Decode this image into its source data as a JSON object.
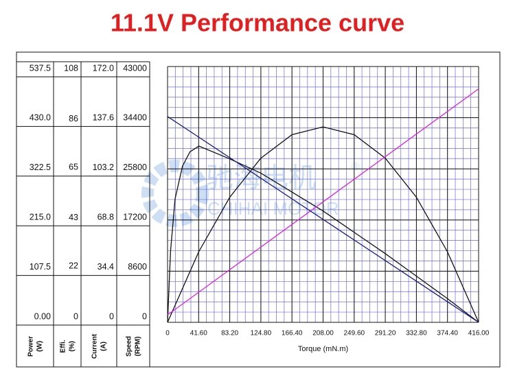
{
  "chart_data": {
    "type": "line",
    "title": "11.1V  Performance curve",
    "xlabel": "Torque (mN.m)",
    "watermark": "驰海电机",
    "watermark_sub": "CHIHAI MOTOR",
    "watermark_mark": "®",
    "xlim": [
      0,
      416
    ],
    "xticks": [
      0,
      {
        "value": 41.6,
        "label": "41.60"
      },
      {
        "value": 83.2,
        "label": "83.20"
      },
      {
        "value": 124.8,
        "label": "124.80"
      },
      {
        "value": 166.4,
        "label": "166.40"
      },
      {
        "value": 208,
        "label": "208.00"
      },
      {
        "value": 249.6,
        "label": "249.60"
      },
      {
        "value": 291.2,
        "label": "291.20"
      },
      {
        "value": 332.8,
        "label": "332.80"
      },
      {
        "value": 374.4,
        "label": "374.40"
      },
      {
        "value": 416,
        "label": "416.00"
      }
    ],
    "grid": true,
    "series": [
      {
        "name": "Power",
        "unit": "(W)",
        "color": "#111111",
        "ylim": [
          0,
          537.5
        ],
        "yticks": [
          {
            "value": 0,
            "label": "0.00"
          },
          107.5,
          {
            "value": 215,
            "label": "215.0"
          },
          322.5,
          {
            "value": 430,
            "label": "430.0"
          },
          537.5
        ],
        "x": [
          0,
          41.6,
          83.2,
          124.8,
          166.4,
          208,
          249.6,
          291.2,
          332.8,
          374.4,
          416
        ],
        "values": [
          0,
          147.9,
          262.8,
          345,
          394.3,
          410.7,
          394.3,
          345,
          262.8,
          147.9,
          0
        ]
      },
      {
        "name": "Effi.",
        "unit": "(%)",
        "color": "#111111",
        "ylim": [
          0,
          108
        ],
        "yticks": [
          0,
          22,
          43,
          65,
          86,
          108
        ],
        "x": [
          0,
          4,
          10,
          20,
          30,
          42,
          83.2,
          124.8,
          166.4,
          208,
          249.6,
          291.2,
          332.8,
          374.4,
          416
        ],
        "values": [
          0,
          30,
          52,
          66,
          72,
          74.4,
          69,
          63,
          55,
          47,
          38,
          29,
          19.5,
          10,
          0
        ]
      },
      {
        "name": "Current",
        "unit": "(A)",
        "color": "#e020e0",
        "ylim": [
          0,
          172
        ],
        "yticks": [
          0,
          34.4,
          68.8,
          103.2,
          137.6,
          {
            "value": 172,
            "label": "172.0"
          }
        ],
        "x": [
          0,
          416
        ],
        "values": [
          5,
          157
        ]
      },
      {
        "name": "Speed",
        "unit": "(RPM)",
        "color": "#1a1a80",
        "ylim": [
          0,
          43000
        ],
        "yticks": [
          0,
          8600,
          17200,
          25800,
          34400,
          43000
        ],
        "x": [
          0,
          416
        ],
        "values": [
          34600,
          0
        ]
      }
    ]
  }
}
